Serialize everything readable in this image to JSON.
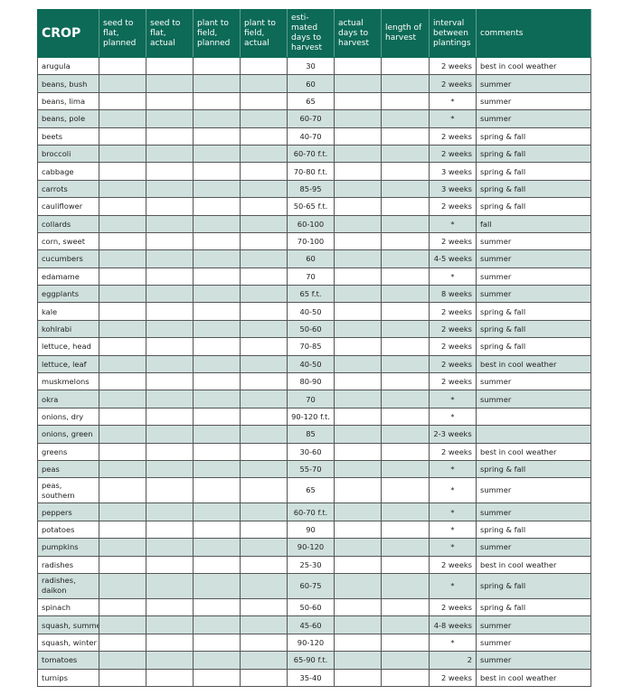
{
  "headers": [
    "CROP",
    "seed to flat, planned",
    "seed to flat, actual",
    "plant to field, planned",
    "plant to field, actual",
    "esti-mated days to harvest",
    "actual days to harvest",
    "length of harvest",
    "interval between plantings",
    "comments"
  ],
  "rows": [
    [
      "arugula",
      "30",
      "2 weeks",
      "best in cool weather"
    ],
    [
      "beans, bush",
      "60",
      "2 weeks",
      "summer"
    ],
    [
      "beans, lima",
      "65",
      "*",
      "summer"
    ],
    [
      "beans, pole",
      "60-70",
      "*",
      "summer"
    ],
    [
      "beets",
      "40-70",
      "2 weeks",
      "spring & fall"
    ],
    [
      "broccoli",
      "60-70 f.t.",
      "2 weeks",
      "spring & fall"
    ],
    [
      "cabbage",
      "70-80 f.t.",
      "3 weeks",
      "spring & fall"
    ],
    [
      "carrots",
      "85-95",
      "3 weeks",
      "spring & fall"
    ],
    [
      "cauliflower",
      "50-65 f.t.",
      "2 weeks",
      "spring & fall"
    ],
    [
      "collards",
      "60-100",
      "*",
      "fall"
    ],
    [
      "corn, sweet",
      "70-100",
      "2 weeks",
      "summer"
    ],
    [
      "cucumbers",
      "60",
      "4-5 weeks",
      "summer"
    ],
    [
      "edamame",
      "70",
      "*",
      "summer"
    ],
    [
      "eggplants",
      "65 f.t.",
      "8 weeks",
      "summer"
    ],
    [
      "kale",
      "40-50",
      "2 weeks",
      "spring & fall"
    ],
    [
      "kohlrabi",
      "50-60",
      "2 weeks",
      "spring & fall"
    ],
    [
      "lettuce, head",
      "70-85",
      "2 weeks",
      "spring & fall"
    ],
    [
      "lettuce, leaf",
      "40-50",
      "2 weeks",
      "best in cool weather"
    ],
    [
      "muskmelons",
      "80-90",
      "2 weeks",
      "summer"
    ],
    [
      "okra",
      "70",
      "*",
      "summer"
    ],
    [
      "onions, dry",
      "90-120 f.t.",
      "*",
      ""
    ],
    [
      "onions, green",
      "85",
      "2-3 weeks",
      ""
    ],
    [
      "greens",
      "30-60",
      "2 weeks",
      "best in cool weather"
    ],
    [
      "peas",
      "55-70",
      "*",
      "spring & fall"
    ],
    [
      "peas, southern",
      "65",
      "*",
      "summer"
    ],
    [
      "peppers",
      "60-70 f.t.",
      "*",
      "summer"
    ],
    [
      "potatoes",
      "90",
      "*",
      "spring & fall"
    ],
    [
      "pumpkins",
      "90-120",
      "*",
      "summer"
    ],
    [
      "radishes",
      "25-30",
      "2 weeks",
      "best in cool weather"
    ],
    [
      "radishes, daikon",
      "60-75",
      "*",
      "spring & fall"
    ],
    [
      "spinach",
      "50-60",
      "2 weeks",
      "spring & fall"
    ],
    [
      "squash, summer",
      "45-60",
      "4-8 weeks",
      "summer"
    ],
    [
      "squash, winter",
      "90-120",
      "*",
      "summer"
    ],
    [
      "tomatoes",
      "65-90 f.t.",
      "2",
      "summer"
    ],
    [
      "turnips",
      "35-40",
      "2 weeks",
      "best in cool weather"
    ]
  ],
  "colors": {
    "header": "#0d6a57",
    "alt_row": "#cfe0dd"
  }
}
